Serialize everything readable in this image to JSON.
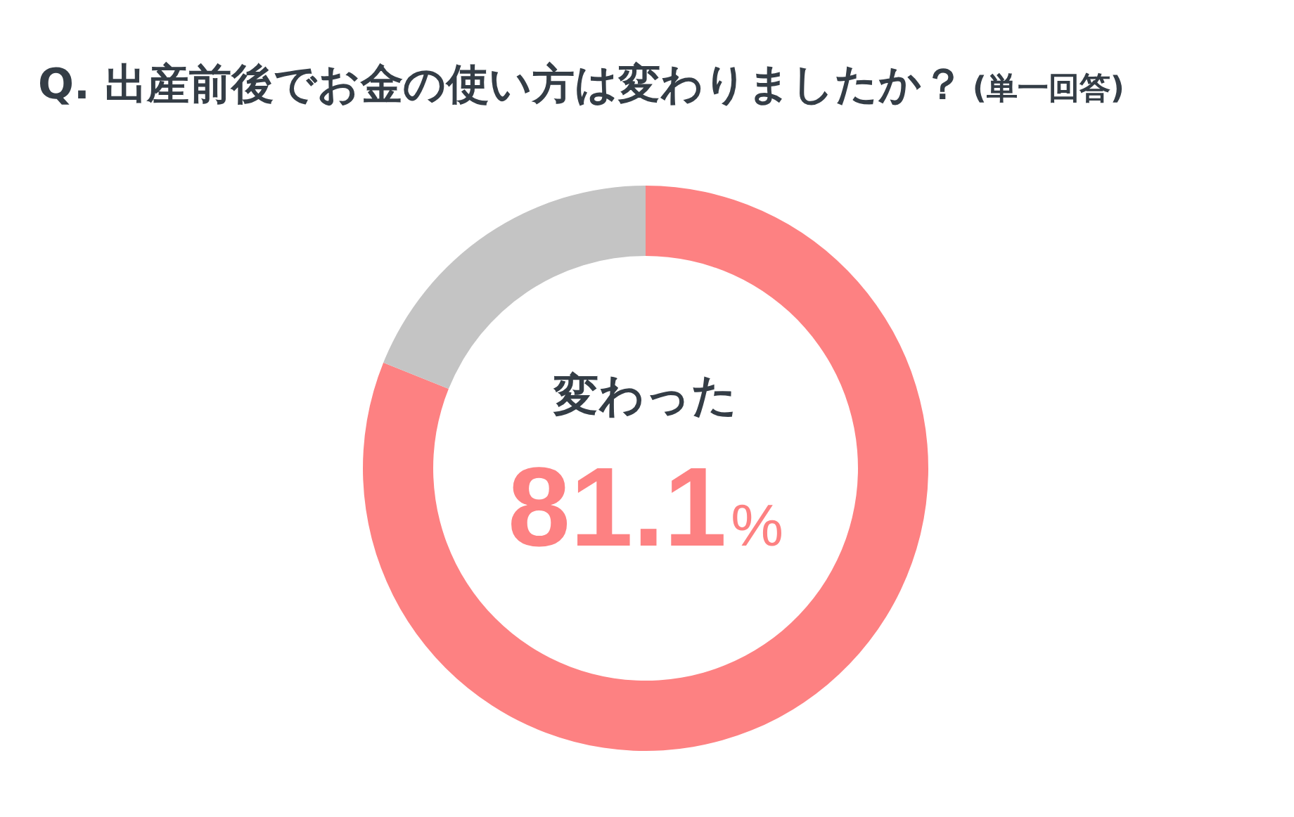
{
  "chart_data": {
    "type": "donut",
    "title": "Q. 出産前後でお金の使い方は変わりましたか？",
    "subtitle": "(単一回答)",
    "categories": [
      "変わった",
      null
    ],
    "values": [
      81.1,
      18.9
    ],
    "colors": [
      "#fd8182",
      "#c4c4c4"
    ],
    "value_labels": [
      "81.1%",
      null
    ]
  }
}
